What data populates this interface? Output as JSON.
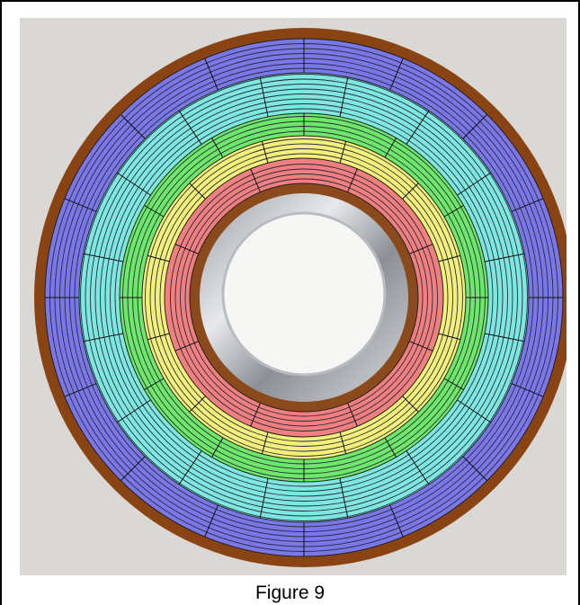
{
  "figure": {
    "caption": "Figure 9"
  }
}
